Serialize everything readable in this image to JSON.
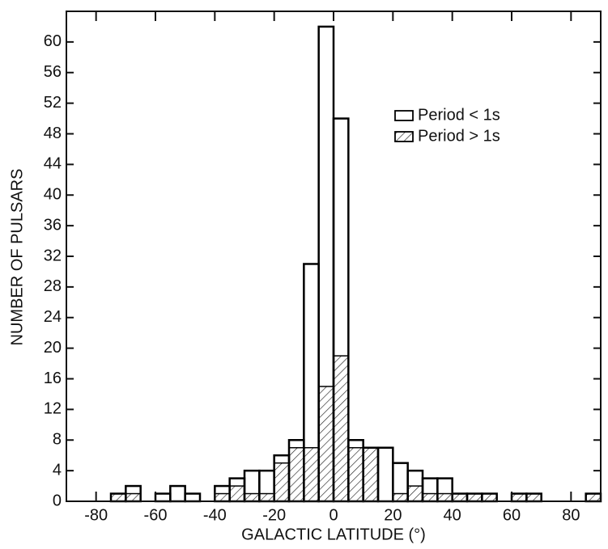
{
  "chart_data": {
    "type": "histogram",
    "xlabel": "GALACTIC LATITUDE (°)",
    "ylabel": "NUMBER OF PULSARS",
    "bins": [
      -75,
      -70,
      -65,
      -60,
      -55,
      -50,
      -45,
      -40,
      -35,
      -30,
      -25,
      -20,
      -15,
      -10,
      -5,
      0,
      5,
      10,
      15,
      20,
      25,
      30,
      35,
      40,
      45,
      50,
      55,
      60,
      65,
      70,
      75,
      80,
      85,
      90
    ],
    "series": [
      {
        "name": "Period < 1s",
        "color": "#000000",
        "fill": "none",
        "values": [
          1,
          2,
          0,
          1,
          2,
          1,
          0,
          2,
          3,
          4,
          4,
          6,
          8,
          31,
          62,
          50,
          8,
          7,
          7,
          5,
          4,
          3,
          3,
          1,
          1,
          1,
          0,
          1,
          1,
          0,
          0,
          0,
          1
        ]
      },
      {
        "name": "Period > 1s",
        "color": "#000000",
        "fill": "hatch",
        "values": [
          1,
          1,
          0,
          0,
          0,
          0,
          0,
          1,
          2,
          1,
          1,
          5,
          7,
          7,
          15,
          19,
          7,
          7,
          0,
          1,
          2,
          1,
          1,
          1,
          1,
          1,
          0,
          1,
          1,
          0,
          0,
          0,
          1
        ]
      }
    ],
    "xlim": [
      -90,
      90
    ],
    "ylim": [
      0,
      64
    ],
    "xticks": [
      -80,
      -60,
      -40,
      -20,
      0,
      20,
      40,
      60,
      80
    ],
    "yticks": [
      0,
      4,
      8,
      12,
      16,
      20,
      24,
      28,
      32,
      36,
      40,
      44,
      48,
      52,
      56,
      60
    ],
    "legend": "upper right"
  }
}
